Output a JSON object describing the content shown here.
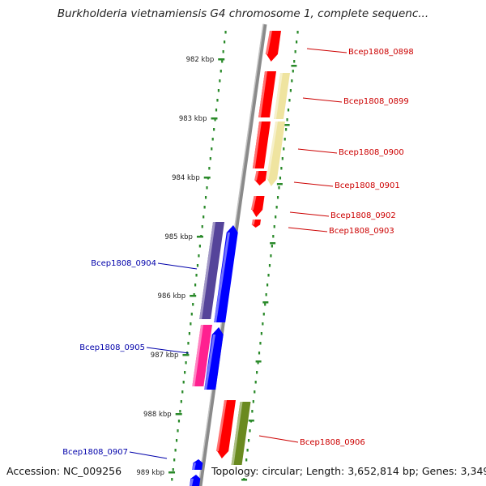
{
  "title": "Burkholderia vietnamiensis G4 chromosome 1, complete sequenc...",
  "footer": {
    "accession": "Accession: NC_009256",
    "summary": "Topology: circular; Length: 3,652,814 bp; Genes: 3,349"
  },
  "colors": {
    "backbone": "#8a8a8a",
    "tick": "#2a8a2a",
    "forward_label": "#cc0000",
    "reverse_label": "#0000aa",
    "red": "#ff0000",
    "pale_yellow": "#efe4a0",
    "purple": "#55449a",
    "blue": "#0000ff",
    "magenta": "#ff2090",
    "olive": "#6a8a20"
  },
  "scale": {
    "unit": "kbp",
    "labels": [
      "982 kbp",
      "983 kbp",
      "984 kbp",
      "985 kbp",
      "986 kbp",
      "987 kbp",
      "988 kbp",
      "989 kbp"
    ]
  },
  "genes": [
    {
      "label": "Bcep1808_0898",
      "strand": "forward",
      "color": "red"
    },
    {
      "label": "Bcep1808_0899",
      "strand": "forward",
      "color": "red"
    },
    {
      "label": "Bcep1808_0900",
      "strand": "forward",
      "color": "red"
    },
    {
      "label": "Bcep1808_0901",
      "strand": "forward",
      "color": "red"
    },
    {
      "label": "Bcep1808_0902",
      "strand": "forward",
      "color": "red"
    },
    {
      "label": "Bcep1808_0903",
      "strand": "forward",
      "color": "red"
    },
    {
      "label": "Bcep1808_0904",
      "strand": "reverse",
      "color": "blue"
    },
    {
      "label": "Bcep1808_0905",
      "strand": "reverse",
      "color": "blue"
    },
    {
      "label": "Bcep1808_0906",
      "strand": "forward",
      "color": "red"
    },
    {
      "label": "Bcep1808_0907",
      "strand": "reverse",
      "color": "blue"
    }
  ]
}
